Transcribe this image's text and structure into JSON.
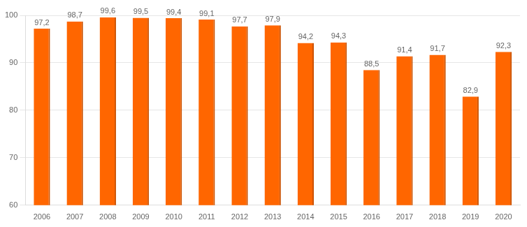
{
  "chart_data": {
    "type": "bar",
    "categories": [
      "2006",
      "2007",
      "2008",
      "2009",
      "2010",
      "2011",
      "2012",
      "2013",
      "2014",
      "2015",
      "2016",
      "2017",
      "2018",
      "2019",
      "2020"
    ],
    "values": [
      97.2,
      98.7,
      99.6,
      99.5,
      99.4,
      99.1,
      97.7,
      97.9,
      94.2,
      94.3,
      88.5,
      91.4,
      91.7,
      82.9,
      92.3
    ],
    "value_labels": [
      "97,2",
      "98,7",
      "99,6",
      "99,5",
      "99,4",
      "99,1",
      "97,7",
      "97,9",
      "94,2",
      "94,3",
      "88,5",
      "91,4",
      "91,7",
      "82,9",
      "92,3"
    ],
    "color": "#ff6600",
    "ylim": [
      60,
      100
    ],
    "yticks": [
      60,
      70,
      80,
      90,
      100
    ],
    "grid": true,
    "data_labels": true
  }
}
